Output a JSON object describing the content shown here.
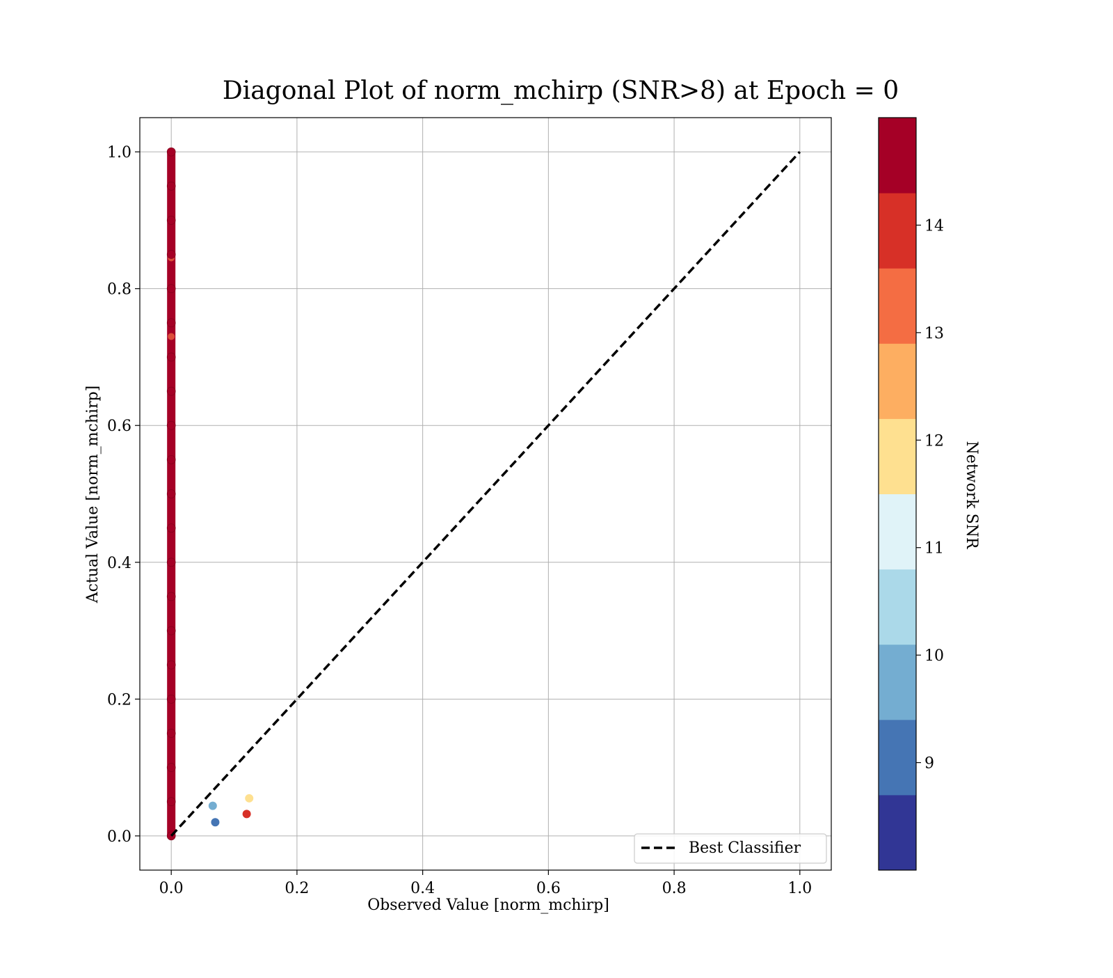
{
  "chart_data": {
    "type": "scatter",
    "title": "Diagonal Plot of norm_mchirp (SNR>8) at Epoch = 0",
    "xlabel": "Observed Value [norm_mchirp]",
    "ylabel": "Actual Value [norm_mchirp]",
    "xlim": [
      -0.05,
      1.05
    ],
    "ylim": [
      -0.05,
      1.05
    ],
    "xticks": [
      "0.0",
      "0.2",
      "0.4",
      "0.6",
      "0.8",
      "1.0"
    ],
    "yticks": [
      "0.0",
      "0.2",
      "0.4",
      "0.6",
      "0.8",
      "1.0"
    ],
    "xtick_values": [
      0.0,
      0.2,
      0.4,
      0.6,
      0.8,
      1.0
    ],
    "ytick_values": [
      0.0,
      0.2,
      0.4,
      0.6,
      0.8,
      1.0
    ],
    "grid": true,
    "vertical_cluster": {
      "x": 0.0,
      "y_range": [
        0.0,
        1.0
      ],
      "snr": 14.5,
      "color": "#a50026",
      "highlight_points": [
        {
          "x": 0.0,
          "y": 0.845,
          "snr": 13.0
        },
        {
          "x": 0.0,
          "y": 0.73,
          "snr": 13.5
        }
      ]
    },
    "points": [
      {
        "x": 0.066,
        "y": 0.044,
        "snr": 9.8
      },
      {
        "x": 0.07,
        "y": 0.02,
        "snr": 9.0
      },
      {
        "x": 0.124,
        "y": 0.055,
        "snr": 11.8
      },
      {
        "x": 0.12,
        "y": 0.032,
        "snr": 13.9
      }
    ],
    "reference_line": {
      "name": "Best Classifier",
      "x": [
        0.0,
        1.0
      ],
      "y": [
        0.0,
        1.0
      ],
      "style": "dashed",
      "color": "#000000"
    },
    "legend": {
      "placement": "lower-right",
      "entries": [
        "Best Classifier"
      ]
    },
    "colorbar": {
      "label": "Network SNR",
      "range": [
        8.0,
        15.0
      ],
      "ticks": [
        "9",
        "10",
        "11",
        "12",
        "13",
        "14"
      ],
      "tick_values": [
        9,
        10,
        11,
        12,
        13,
        14
      ],
      "colors": [
        "#313695",
        "#4575b4",
        "#74add1",
        "#abd9e9",
        "#e0f3f8",
        "#fee090",
        "#fdae61",
        "#f46d43",
        "#d73027",
        "#a50026"
      ]
    }
  }
}
